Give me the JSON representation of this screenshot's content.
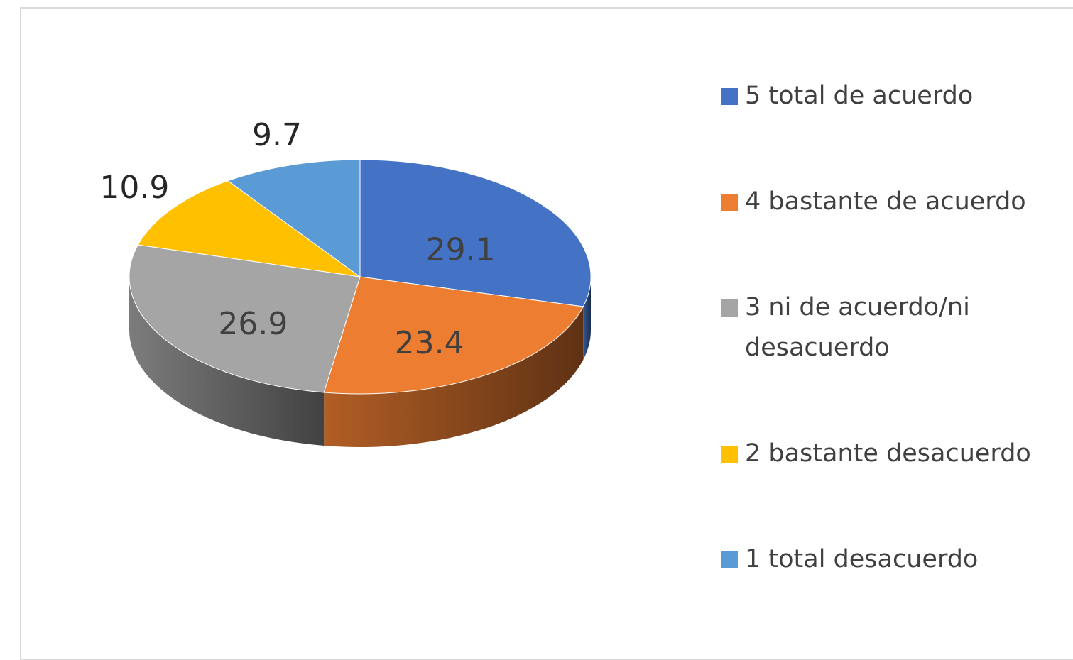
{
  "chart_data": {
    "type": "pie",
    "categories": [
      "5 total de acuerdo",
      "4 bastante de acuerdo",
      "3 ni de acuerdo/ni desacuerdo",
      "2 bastante desacuerdo",
      "1 total desacuerdo"
    ],
    "values": [
      29.1,
      23.4,
      26.9,
      10.9,
      9.7
    ],
    "colors": [
      "#4472c4",
      "#ed7d31",
      "#a5a5a5",
      "#ffc000",
      "#5b9bd5"
    ],
    "legend": "right"
  }
}
